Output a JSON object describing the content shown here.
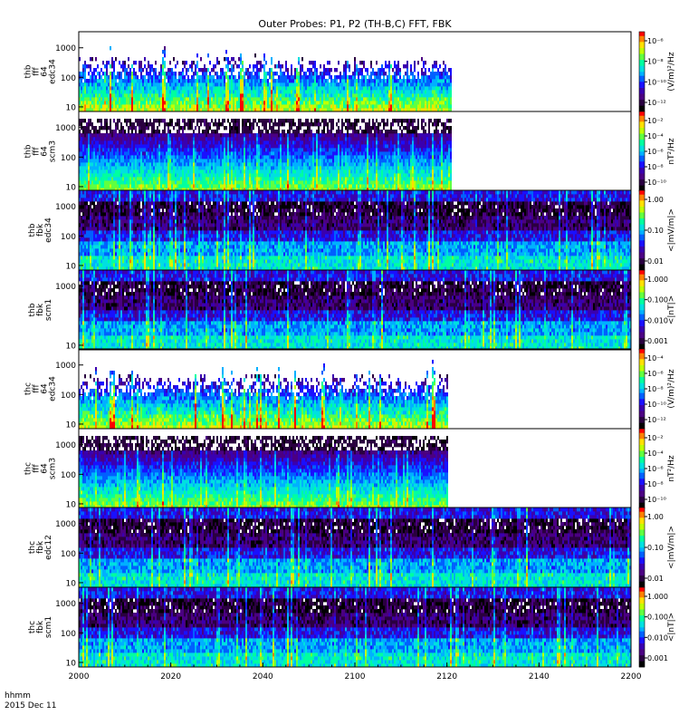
{
  "title": "Outer Probes: P1, P2 (TH-B,C) FFT, FBK",
  "time_axis": {
    "unit_label": "hhmm",
    "date_label": "2015 Dec 11",
    "ticks": [
      "2000",
      "2020",
      "2040",
      "2100",
      "2120",
      "2140",
      "2200"
    ]
  },
  "chart_data": [
    {
      "type": "heatmap",
      "ylabel": [
        "thb",
        "fff",
        "64",
        "edc34"
      ],
      "yticks": [
        "10",
        "100",
        "1000"
      ],
      "scale": "log",
      "data_end": "2121",
      "colorbar": {
        "label": "(V/m)²/Hz",
        "ticks": [
          "10⁻¹²",
          "10⁻¹⁰",
          "10⁻⁸",
          "10⁻⁶"
        ]
      }
    },
    {
      "type": "heatmap",
      "ylabel": [
        "thb",
        "fff",
        "64",
        "scm3"
      ],
      "yticks": [
        "10",
        "100",
        "1000"
      ],
      "scale": "log",
      "data_end": "2121",
      "colorbar": {
        "label": "nT²/Hz",
        "ticks": [
          "10⁻¹⁰",
          "10⁻⁸",
          "10⁻⁶",
          "10⁻⁴",
          "10⁻²"
        ]
      }
    },
    {
      "type": "heatmap",
      "ylabel": [
        "thb",
        "fbk",
        "edc34"
      ],
      "yticks": [
        "10",
        "100",
        "1000"
      ],
      "scale": "log",
      "data_end": "2200",
      "colorbar": {
        "label": "<|mV/m|>",
        "ticks": [
          "0.01",
          "0.10",
          "1.00"
        ]
      }
    },
    {
      "type": "heatmap",
      "ylabel": [
        "thb",
        "fbk",
        "scm1"
      ],
      "yticks": [
        "10",
        "1000"
      ],
      "scale": "log",
      "data_end": "2200",
      "colorbar": {
        "label": "<|nT|>",
        "ticks": [
          "0.001",
          "0.010",
          "0.100",
          "1.000"
        ]
      }
    },
    {
      "type": "heatmap",
      "ylabel": [
        "thc",
        "fff",
        "64",
        "edc34"
      ],
      "yticks": [
        "10",
        "100",
        "1000"
      ],
      "scale": "log",
      "data_end": "2120",
      "colorbar": {
        "label": "(V/m)²/Hz",
        "ticks": [
          "10⁻¹²",
          "10⁻¹⁰",
          "10⁻⁸",
          "10⁻⁶",
          "10⁻⁴"
        ]
      }
    },
    {
      "type": "heatmap",
      "ylabel": [
        "thc",
        "fff",
        "64",
        "scm3"
      ],
      "yticks": [
        "10",
        "100",
        "1000"
      ],
      "scale": "log",
      "data_end": "2120",
      "colorbar": {
        "label": "nT²/Hz",
        "ticks": [
          "10⁻¹⁰",
          "10⁻⁸",
          "10⁻⁶",
          "10⁻⁴",
          "10⁻²"
        ]
      }
    },
    {
      "type": "heatmap",
      "ylabel": [
        "thc",
        "fbk",
        "edc12"
      ],
      "yticks": [
        "10",
        "100",
        "1000"
      ],
      "scale": "log",
      "data_end": "2200",
      "colorbar": {
        "label": "<|mV/m|>",
        "ticks": [
          "0.01",
          "0.10",
          "1.00"
        ]
      }
    },
    {
      "type": "heatmap",
      "ylabel": [
        "thc",
        "fbk",
        "scm1"
      ],
      "yticks": [
        "10",
        "100",
        "1000"
      ],
      "scale": "log",
      "data_end": "2200",
      "colorbar": {
        "label": "<|nT|>",
        "ticks": [
          "0.001",
          "0.010",
          "0.100",
          "1.000"
        ]
      }
    }
  ]
}
